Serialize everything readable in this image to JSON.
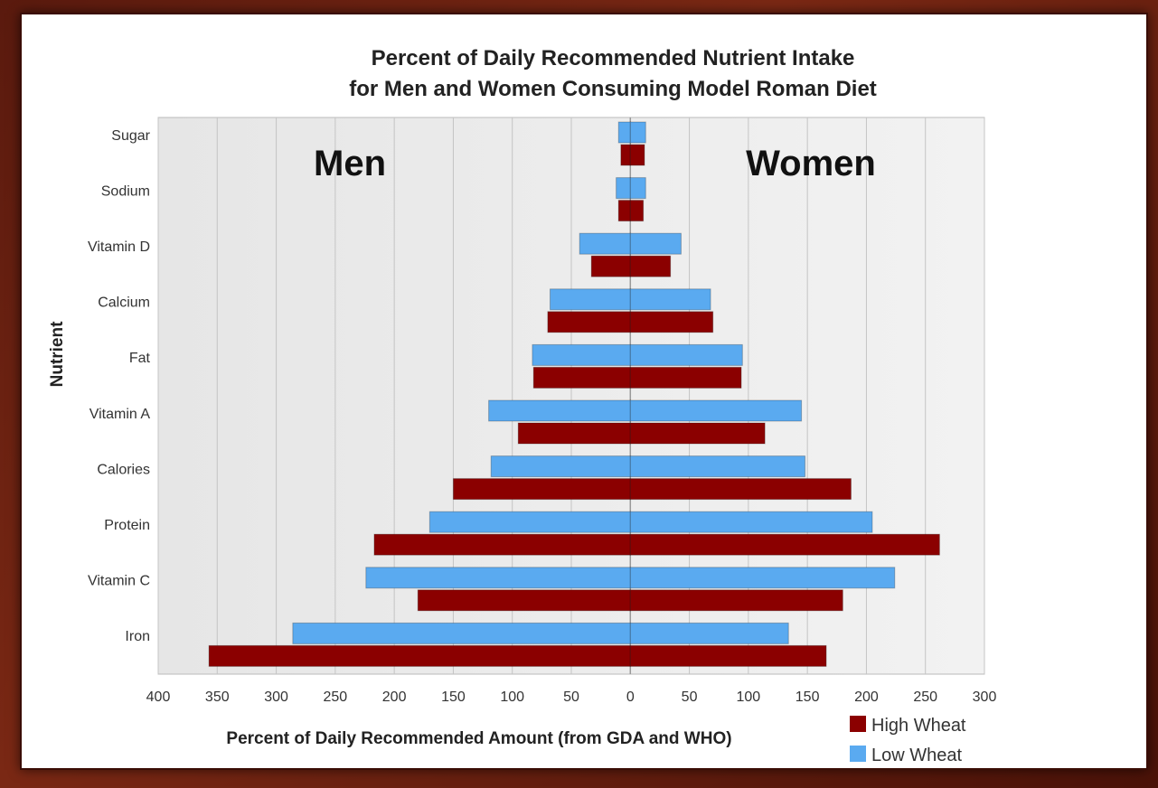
{
  "chart_data": {
    "type": "bar",
    "orientation": "horizontal",
    "title_line1": "Percent of Daily Recommended Nutrient Intake",
    "title_line2": "for Men and Women Consuming Model Roman Diet",
    "xlabel": "Percent of Daily Recommended Amount (from GDA and WHO)",
    "ylabel": "Nutrient",
    "left_group_label": "Men",
    "right_group_label": "Women",
    "x_ticks": [
      "400",
      "350",
      "300",
      "250",
      "200",
      "150",
      "100",
      "50",
      "0",
      "50",
      "100",
      "150",
      "200",
      "250",
      "300"
    ],
    "xlim": [
      -400,
      300
    ],
    "grid": true,
    "legend_position": "bottom-right",
    "categories": [
      "Sugar",
      "Sodium",
      "Vitamin D",
      "Calcium",
      "Fat",
      "Vitamin A",
      "Calories",
      "Protein",
      "Vitamin C",
      "Iron"
    ],
    "series": [
      {
        "name": "High Wheat",
        "color": "#8b0000",
        "men": [
          8,
          10,
          33,
          70,
          82,
          95,
          150,
          217,
          180,
          357
        ],
        "women": [
          12,
          11,
          34,
          70,
          94,
          114,
          187,
          262,
          180,
          166
        ]
      },
      {
        "name": "Low Wheat",
        "color": "#5aaaf0",
        "men": [
          10,
          12,
          43,
          68,
          83,
          120,
          118,
          170,
          224,
          286
        ],
        "women": [
          13,
          13,
          43,
          68,
          95,
          145,
          148,
          205,
          224,
          134
        ]
      }
    ]
  }
}
